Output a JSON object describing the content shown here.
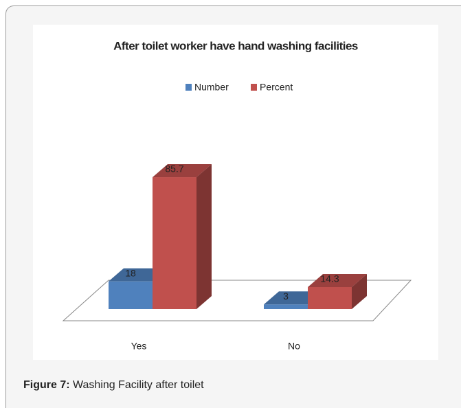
{
  "chart_data": {
    "type": "bar3d",
    "title": "After toilet worker have hand washing facilities",
    "categories": [
      "Yes",
      "No"
    ],
    "series": [
      {
        "name": "Number",
        "color": "#4f81bd",
        "values": [
          18,
          3
        ]
      },
      {
        "name": "Percent",
        "color": "#c0504d",
        "values": [
          85.7,
          14.3
        ]
      }
    ],
    "legend": "top"
  },
  "caption": {
    "label": "Figure 7:",
    "text": "Washing Facility after toilet"
  }
}
